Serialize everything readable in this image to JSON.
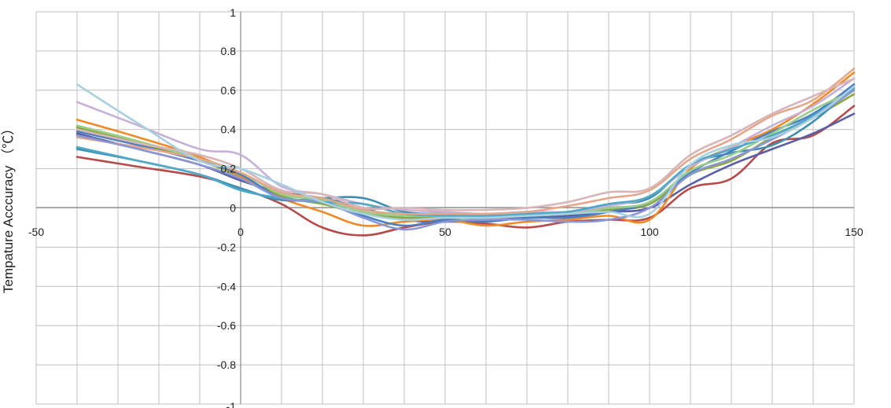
{
  "chart_data": {
    "type": "line",
    "title": "",
    "xlabel": "",
    "ylabel": "Tempature Acccuracy （℃）",
    "xlim": [
      -50,
      150
    ],
    "ylim": [
      -1,
      1
    ],
    "x_ticks": [
      -50,
      0,
      50,
      100,
      150
    ],
    "x_tick_labels": [
      "-50",
      "0",
      "50",
      "100",
      "150"
    ],
    "y_ticks": [
      -1,
      -0.8,
      -0.6,
      -0.4,
      -0.2,
      0,
      0.2,
      0.4,
      0.6,
      0.8,
      1
    ],
    "y_tick_labels": [
      "-1",
      "-0.8",
      "-0.6",
      "-0.4",
      "-0.2",
      "0",
      "0.2",
      "0.4",
      "0.6",
      "0.8",
      "1"
    ],
    "grid": {
      "x_step": 10,
      "y_step": 0.2,
      "color": "#c0c0c0"
    },
    "legend": "none",
    "x": [
      -40,
      -25,
      -10,
      0,
      10,
      20,
      30,
      40,
      50,
      60,
      70,
      80,
      90,
      100,
      110,
      120,
      130,
      140,
      150
    ],
    "series": [
      {
        "color": "#b84a4a",
        "values": [
          0.26,
          0.21,
          0.16,
          0.1,
          0.02,
          -0.1,
          -0.14,
          -0.1,
          -0.07,
          -0.08,
          -0.1,
          -0.07,
          -0.06,
          -0.05,
          0.1,
          0.15,
          0.33,
          0.37,
          0.52
        ]
      },
      {
        "color": "#5a5fa8",
        "values": [
          0.38,
          0.3,
          0.22,
          0.14,
          0.08,
          0.05,
          0.0,
          -0.06,
          -0.07,
          -0.06,
          -0.05,
          -0.04,
          -0.02,
          0.0,
          0.12,
          0.22,
          0.3,
          0.38,
          0.48
        ]
      },
      {
        "color": "#8aa93c",
        "values": [
          0.41,
          0.33,
          0.24,
          0.16,
          0.06,
          0.02,
          -0.03,
          -0.05,
          -0.05,
          -0.05,
          -0.04,
          -0.03,
          -0.01,
          0.02,
          0.17,
          0.24,
          0.36,
          0.46,
          0.58
        ]
      },
      {
        "color": "#f08a26",
        "values": [
          0.45,
          0.36,
          0.26,
          0.16,
          0.05,
          -0.02,
          -0.09,
          -0.07,
          -0.06,
          -0.09,
          -0.07,
          -0.06,
          -0.04,
          -0.06,
          0.2,
          0.31,
          0.4,
          0.53,
          0.69
        ]
      },
      {
        "color": "#3f8fb3",
        "values": [
          0.3,
          0.24,
          0.17,
          0.1,
          0.04,
          0.05,
          0.05,
          -0.02,
          -0.03,
          -0.04,
          -0.03,
          -0.02,
          0.02,
          0.05,
          0.22,
          0.28,
          0.32,
          0.44,
          0.62
        ]
      },
      {
        "color": "#4b7fc1",
        "values": [
          0.39,
          0.32,
          0.24,
          0.17,
          0.05,
          0.03,
          -0.04,
          -0.09,
          -0.06,
          -0.07,
          -0.05,
          -0.05,
          -0.02,
          0.03,
          0.18,
          0.29,
          0.39,
          0.48,
          0.63
        ]
      },
      {
        "color": "#9acd8a",
        "values": [
          0.42,
          0.34,
          0.25,
          0.18,
          0.07,
          0.04,
          -0.02,
          -0.04,
          -0.04,
          -0.05,
          -0.04,
          -0.03,
          0.0,
          0.03,
          0.19,
          0.27,
          0.38,
          0.5,
          0.6
        ]
      },
      {
        "color": "#c6b0d8",
        "values": [
          0.54,
          0.42,
          0.3,
          0.27,
          0.11,
          0.07,
          0.02,
          -0.01,
          -0.02,
          -0.03,
          -0.02,
          -0.02,
          0.01,
          0.06,
          0.21,
          0.31,
          0.42,
          0.52,
          0.66
        ]
      },
      {
        "color": "#4fa9c6",
        "values": [
          0.31,
          0.24,
          0.17,
          0.09,
          0.05,
          0.03,
          0.02,
          -0.03,
          -0.04,
          -0.04,
          -0.03,
          -0.02,
          0.02,
          0.06,
          0.22,
          0.3,
          0.37,
          0.47,
          0.61
        ]
      },
      {
        "color": "#e3a88c",
        "values": [
          0.36,
          0.31,
          0.25,
          0.18,
          0.08,
          0.05,
          -0.01,
          -0.03,
          -0.03,
          -0.03,
          -0.02,
          0.01,
          0.05,
          0.09,
          0.25,
          0.35,
          0.47,
          0.55,
          0.71
        ]
      },
      {
        "color": "#8c96d4",
        "values": [
          0.37,
          0.3,
          0.22,
          0.15,
          0.05,
          0.03,
          -0.05,
          -0.11,
          -0.07,
          -0.06,
          -0.06,
          -0.07,
          -0.06,
          0.0,
          0.17,
          0.25,
          0.35,
          0.46,
          0.6
        ]
      },
      {
        "color": "#d8b6b8",
        "values": [
          0.4,
          0.33,
          0.27,
          0.2,
          0.09,
          0.07,
          0.0,
          0.0,
          -0.01,
          -0.01,
          0.0,
          0.03,
          0.08,
          0.1,
          0.27,
          0.37,
          0.48,
          0.57,
          0.66
        ]
      },
      {
        "color": "#a8d0e0",
        "values": [
          0.63,
          0.43,
          0.24,
          0.2,
          0.12,
          0.03,
          -0.03,
          -0.06,
          -0.05,
          -0.05,
          -0.04,
          -0.03,
          -0.02,
          -0.03,
          0.22,
          0.32,
          0.36,
          0.46,
          0.62
        ]
      }
    ]
  }
}
